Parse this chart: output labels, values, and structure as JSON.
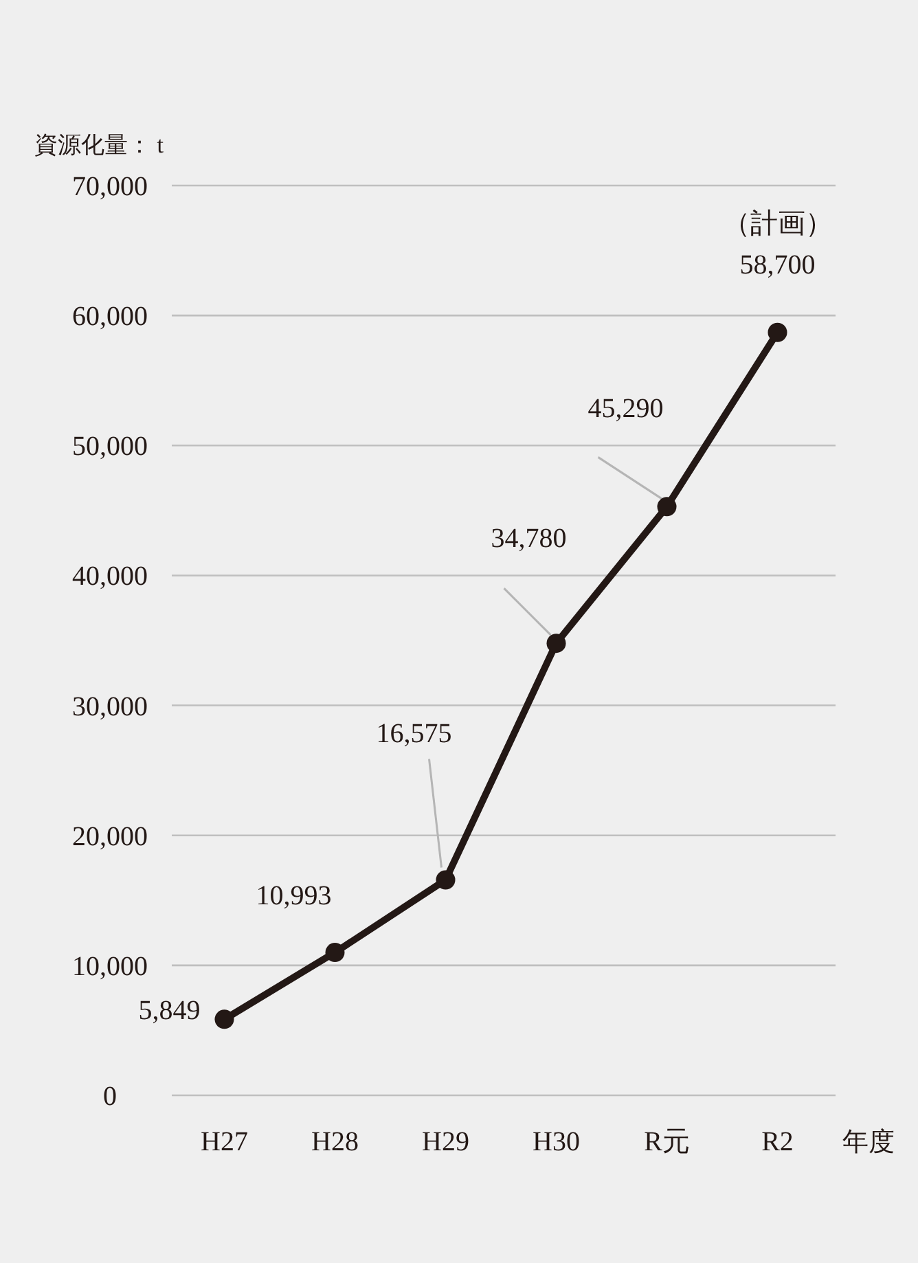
{
  "chart_data": {
    "type": "line",
    "ylabel": "資源化量： t",
    "xlabel": "年度",
    "categories": [
      "H27",
      "H28",
      "H29",
      "H30",
      "R元",
      "R2"
    ],
    "series": [
      {
        "color": "#231815",
        "values": [
          5849,
          10993,
          16575,
          34780,
          45290,
          58700
        ],
        "value_labels": [
          "5,849",
          "10,993",
          "16,575",
          "34,780",
          "45,290",
          "58,700"
        ]
      }
    ],
    "ylim": [
      0,
      70000
    ],
    "yticks": [
      {
        "value": 0,
        "label": "0"
      },
      {
        "value": 10000,
        "label": "10,000"
      },
      {
        "value": 20000,
        "label": "20,000"
      },
      {
        "value": 30000,
        "label": "30,000"
      },
      {
        "value": 40000,
        "label": "40,000"
      },
      {
        "value": 50000,
        "label": "50,000"
      },
      {
        "value": 60000,
        "label": "60,000"
      },
      {
        "value": 70000,
        "label": "70,000"
      }
    ],
    "grid": "y",
    "marker": "circle",
    "line_style": "solid",
    "annotations": [
      "（計画）"
    ]
  }
}
